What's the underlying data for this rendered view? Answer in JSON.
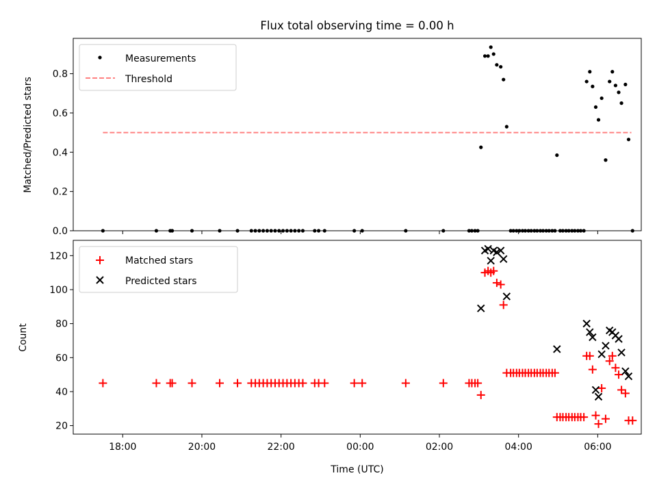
{
  "chart_data": [
    {
      "type": "scatter",
      "title": "Flux total observing time = 0.00 h",
      "xlabel": "",
      "ylabel": "Matched/Predicted stars",
      "xlim_hours": [
        16.75,
        31.1
      ],
      "ylim": [
        0,
        0.98
      ],
      "yticks": [
        0.0,
        0.2,
        0.4,
        0.6,
        0.8
      ],
      "ytick_labels": [
        "0.0",
        "0.2",
        "0.4",
        "0.6",
        "0.8"
      ],
      "legend": {
        "position": "top-left",
        "entries": [
          "Measurements",
          "Threshold"
        ]
      },
      "grid": false,
      "threshold": {
        "name": "Threshold",
        "value": 0.5,
        "x_start": 17.5,
        "x_end": 30.85,
        "color": "#ff8080",
        "style": "dashed"
      },
      "series": [
        {
          "name": "Measurements",
          "marker": "dot",
          "color": "#000000",
          "points": [
            [
              17.5,
              0
            ],
            [
              18.85,
              0
            ],
            [
              19.2,
              0
            ],
            [
              19.25,
              0
            ],
            [
              19.75,
              0
            ],
            [
              20.45,
              0
            ],
            [
              20.9,
              0
            ],
            [
              21.25,
              0
            ],
            [
              21.35,
              0
            ],
            [
              21.45,
              0
            ],
            [
              21.55,
              0
            ],
            [
              21.65,
              0
            ],
            [
              21.75,
              0
            ],
            [
              21.85,
              0
            ],
            [
              21.95,
              0
            ],
            [
              22.05,
              0
            ],
            [
              22.15,
              0
            ],
            [
              22.25,
              0
            ],
            [
              22.35,
              0
            ],
            [
              22.45,
              0
            ],
            [
              22.55,
              0
            ],
            [
              22.85,
              0
            ],
            [
              22.95,
              0
            ],
            [
              23.1,
              0
            ],
            [
              23.85,
              0
            ],
            [
              24.05,
              0
            ],
            [
              25.15,
              0
            ],
            [
              26.1,
              0
            ],
            [
              26.75,
              0
            ],
            [
              26.82,
              0
            ],
            [
              26.9,
              0
            ],
            [
              26.97,
              0
            ],
            [
              27.05,
              0.425
            ],
            [
              27.15,
              0.89
            ],
            [
              27.23,
              0.89
            ],
            [
              27.3,
              0.935
            ],
            [
              27.37,
              0.9
            ],
            [
              27.45,
              0.845
            ],
            [
              27.55,
              0.835
            ],
            [
              27.62,
              0.77
            ],
            [
              27.7,
              0.53
            ],
            [
              27.8,
              0
            ],
            [
              27.87,
              0
            ],
            [
              27.95,
              0
            ],
            [
              28.02,
              0
            ],
            [
              28.1,
              0
            ],
            [
              28.17,
              0
            ],
            [
              28.25,
              0
            ],
            [
              28.32,
              0
            ],
            [
              28.4,
              0
            ],
            [
              28.47,
              0
            ],
            [
              28.55,
              0
            ],
            [
              28.62,
              0
            ],
            [
              28.7,
              0
            ],
            [
              28.77,
              0
            ],
            [
              28.85,
              0
            ],
            [
              28.92,
              0
            ],
            [
              28.97,
              0.385
            ],
            [
              29.05,
              0
            ],
            [
              29.12,
              0
            ],
            [
              29.2,
              0
            ],
            [
              29.27,
              0
            ],
            [
              29.35,
              0
            ],
            [
              29.42,
              0
            ],
            [
              29.5,
              0
            ],
            [
              29.57,
              0
            ],
            [
              29.65,
              0
            ],
            [
              29.72,
              0.76
            ],
            [
              29.8,
              0.81
            ],
            [
              29.87,
              0.735
            ],
            [
              29.95,
              0.63
            ],
            [
              30.02,
              0.565
            ],
            [
              30.1,
              0.675
            ],
            [
              30.2,
              0.36
            ],
            [
              30.3,
              0.76
            ],
            [
              30.37,
              0.81
            ],
            [
              30.45,
              0.74
            ],
            [
              30.53,
              0.705
            ],
            [
              30.6,
              0.65
            ],
            [
              30.7,
              0.745
            ],
            [
              30.78,
              0.465
            ],
            [
              30.88,
              0
            ]
          ]
        }
      ]
    },
    {
      "type": "scatter",
      "title": "",
      "xlabel": "Time (UTC)",
      "ylabel": "Count",
      "xlim_hours": [
        16.75,
        31.1
      ],
      "ylim": [
        15,
        129
      ],
      "yticks": [
        20,
        40,
        60,
        80,
        100,
        120
      ],
      "ytick_labels": [
        "20",
        "40",
        "60",
        "80",
        "100",
        "120"
      ],
      "xtick_hours": [
        18,
        20,
        22,
        24,
        26,
        28,
        30
      ],
      "xtick_labels": [
        "18:00",
        "20:00",
        "22:00",
        "00:00",
        "02:00",
        "04:00",
        "06:00"
      ],
      "legend": {
        "position": "top-left",
        "entries": [
          "Matched stars",
          "Predicted stars"
        ]
      },
      "grid": false,
      "series": [
        {
          "name": "Matched stars",
          "marker": "plus",
          "color": "#ff0000",
          "points": [
            [
              17.5,
              45
            ],
            [
              18.85,
              45
            ],
            [
              19.2,
              45
            ],
            [
              19.25,
              45
            ],
            [
              19.75,
              45
            ],
            [
              20.45,
              45
            ],
            [
              20.9,
              45
            ],
            [
              21.25,
              45
            ],
            [
              21.35,
              45
            ],
            [
              21.45,
              45
            ],
            [
              21.55,
              45
            ],
            [
              21.65,
              45
            ],
            [
              21.75,
              45
            ],
            [
              21.85,
              45
            ],
            [
              21.95,
              45
            ],
            [
              22.05,
              45
            ],
            [
              22.15,
              45
            ],
            [
              22.25,
              45
            ],
            [
              22.35,
              45
            ],
            [
              22.45,
              45
            ],
            [
              22.55,
              45
            ],
            [
              22.85,
              45
            ],
            [
              22.95,
              45
            ],
            [
              23.1,
              45
            ],
            [
              23.85,
              45
            ],
            [
              24.05,
              45
            ],
            [
              25.15,
              45
            ],
            [
              26.1,
              45
            ],
            [
              26.75,
              45
            ],
            [
              26.82,
              45
            ],
            [
              26.9,
              45
            ],
            [
              26.97,
              45
            ],
            [
              27.05,
              38
            ],
            [
              27.15,
              110
            ],
            [
              27.23,
              111
            ],
            [
              27.3,
              110
            ],
            [
              27.37,
              111
            ],
            [
              27.45,
              104
            ],
            [
              27.55,
              103
            ],
            [
              27.62,
              91
            ],
            [
              27.7,
              51
            ],
            [
              27.8,
              51
            ],
            [
              27.87,
              51
            ],
            [
              27.95,
              51
            ],
            [
              28.02,
              51
            ],
            [
              28.1,
              51
            ],
            [
              28.17,
              51
            ],
            [
              28.25,
              51
            ],
            [
              28.32,
              51
            ],
            [
              28.4,
              51
            ],
            [
              28.47,
              51
            ],
            [
              28.55,
              51
            ],
            [
              28.62,
              51
            ],
            [
              28.7,
              51
            ],
            [
              28.77,
              51
            ],
            [
              28.85,
              51
            ],
            [
              28.92,
              51
            ],
            [
              28.97,
              25
            ],
            [
              29.05,
              25
            ],
            [
              29.12,
              25
            ],
            [
              29.2,
              25
            ],
            [
              29.27,
              25
            ],
            [
              29.35,
              25
            ],
            [
              29.42,
              25
            ],
            [
              29.5,
              25
            ],
            [
              29.57,
              25
            ],
            [
              29.65,
              25
            ],
            [
              29.72,
              61
            ],
            [
              29.8,
              61
            ],
            [
              29.87,
              53
            ],
            [
              29.95,
              26
            ],
            [
              30.02,
              21
            ],
            [
              30.1,
              42
            ],
            [
              30.2,
              24
            ],
            [
              30.3,
              58
            ],
            [
              30.37,
              61
            ],
            [
              30.45,
              54
            ],
            [
              30.53,
              50
            ],
            [
              30.6,
              41
            ],
            [
              30.7,
              39
            ],
            [
              30.78,
              23
            ],
            [
              30.88,
              23
            ]
          ]
        },
        {
          "name": "Predicted stars",
          "marker": "x",
          "color": "#000000",
          "points": [
            [
              27.05,
              89
            ],
            [
              27.15,
              123
            ],
            [
              27.23,
              124
            ],
            [
              27.3,
              117
            ],
            [
              27.37,
              123
            ],
            [
              27.45,
              122
            ],
            [
              27.55,
              123
            ],
            [
              27.62,
              118
            ],
            [
              27.7,
              96
            ],
            [
              28.97,
              65
            ],
            [
              29.72,
              80
            ],
            [
              29.8,
              75
            ],
            [
              29.87,
              72
            ],
            [
              29.95,
              41
            ],
            [
              30.02,
              37
            ],
            [
              30.1,
              62
            ],
            [
              30.2,
              67
            ],
            [
              30.3,
              76
            ],
            [
              30.37,
              75
            ],
            [
              30.45,
              73
            ],
            [
              30.53,
              71
            ],
            [
              30.6,
              63
            ],
            [
              30.7,
              52
            ],
            [
              30.78,
              49
            ]
          ]
        }
      ]
    }
  ]
}
